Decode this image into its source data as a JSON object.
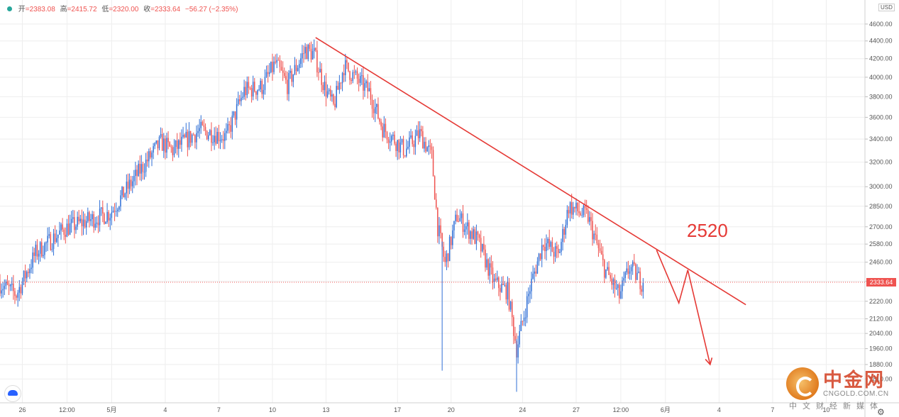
{
  "ohlc_bar": {
    "open_label": "开",
    "open_value": "=2383.08",
    "high_label": "高",
    "high_value": "=2415.72",
    "low_label": "低",
    "low_value": "=2320.00",
    "close_label": "收",
    "close_value": "=2333.64",
    "change": "−56.27 (−2.35%)"
  },
  "last_price_label": "2333.64",
  "currency_label": "USD",
  "annotation_text": "2520",
  "watermark": {
    "title": "中金网",
    "url": "CNGOLD.COM.CN",
    "slogan": "中文财经新媒体"
  },
  "colors": {
    "up": "#2f6fd6",
    "down": "#ef5350",
    "trendline": "#e53935",
    "grid": "#eeeeee"
  },
  "chart_data": {
    "type": "candlestick",
    "title": "",
    "xlabel": "",
    "ylabel": "",
    "y_scale": "log",
    "ylim": [
      1700,
      4900
    ],
    "y_ticks": [
      1810,
      1880,
      1960,
      2040,
      2120,
      2220,
      2340,
      2460,
      2580,
      2700,
      2850,
      3000,
      3200,
      3400,
      3600,
      3800,
      4000,
      4200,
      4400,
      4600
    ],
    "x_ticks": [
      {
        "date": "2021-04-26",
        "label": "26"
      },
      {
        "date": "2021-04-28T12:00",
        "label": "12:00"
      },
      {
        "date": "2021-05-01",
        "label": "5月"
      },
      {
        "date": "2021-05-04",
        "label": "4"
      },
      {
        "date": "2021-05-07",
        "label": "7"
      },
      {
        "date": "2021-05-10",
        "label": "10"
      },
      {
        "date": "2021-05-13",
        "label": "13"
      },
      {
        "date": "2021-05-17",
        "label": "17"
      },
      {
        "date": "2021-05-20",
        "label": "20"
      },
      {
        "date": "2021-05-24",
        "label": "24"
      },
      {
        "date": "2021-05-27",
        "label": "27"
      },
      {
        "date": "2021-05-29T12:00",
        "label": "12:00"
      },
      {
        "date": "2021-06-01",
        "label": "6月"
      },
      {
        "date": "2021-06-04",
        "label": "4"
      },
      {
        "date": "2021-06-07",
        "label": "7"
      },
      {
        "date": "2021-06-10",
        "label": "10"
      }
    ],
    "x_range": [
      "2021-04-24T18:00",
      "2021-06-12T04:00"
    ],
    "grid": true,
    "interval_hours": 2,
    "series_anchors": [
      {
        "t": "2021-04-24T18:00",
        "p": 2330
      },
      {
        "t": "2021-04-25T18:00",
        "p": 2260
      },
      {
        "t": "2021-04-26T20:00",
        "p": 2520
      },
      {
        "t": "2021-04-28T12:00",
        "p": 2690
      },
      {
        "t": "2021-05-01T00:00",
        "p": 2800
      },
      {
        "t": "2021-05-03T00:00",
        "p": 3200
      },
      {
        "t": "2021-05-03T20:00",
        "p": 3370
      },
      {
        "t": "2021-05-04T12:00",
        "p": 3300
      },
      {
        "t": "2021-05-06T00:00",
        "p": 3480
      },
      {
        "t": "2021-05-07T12:00",
        "p": 3420
      },
      {
        "t": "2021-05-08T12:00",
        "p": 3860
      },
      {
        "t": "2021-05-09T12:00",
        "p": 3900
      },
      {
        "t": "2021-05-10T06:00",
        "p": 4150
      },
      {
        "t": "2021-05-10T22:00",
        "p": 3920
      },
      {
        "t": "2021-05-11T22:00",
        "p": 4300
      },
      {
        "t": "2021-05-12T10:00",
        "p": 4250
      },
      {
        "t": "2021-05-13T00:00",
        "p": 3900
      },
      {
        "t": "2021-05-13T12:00",
        "p": 3700
      },
      {
        "t": "2021-05-14T02:00",
        "p": 4120
      },
      {
        "t": "2021-05-15T12:00",
        "p": 3850
      },
      {
        "t": "2021-05-16T06:00",
        "p": 3500
      },
      {
        "t": "2021-05-17T12:00",
        "p": 3300
      },
      {
        "t": "2021-05-18T08:00",
        "p": 3450
      },
      {
        "t": "2021-05-19T00:00",
        "p": 3250
      },
      {
        "t": "2021-05-19T08:00",
        "p": 2700
      },
      {
        "t": "2021-05-19T18:00",
        "p": 2450
      },
      {
        "t": "2021-05-20T10:00",
        "p": 2780
      },
      {
        "t": "2021-05-21T14:00",
        "p": 2600
      },
      {
        "t": "2021-05-22T12:00",
        "p": 2330
      },
      {
        "t": "2021-05-23T06:00",
        "p": 2280
      },
      {
        "t": "2021-05-23T18:00",
        "p": 1960
      },
      {
        "t": "2021-05-24T12:00",
        "p": 2300
      },
      {
        "t": "2021-05-25T06:00",
        "p": 2600
      },
      {
        "t": "2021-05-26T02:00",
        "p": 2500
      },
      {
        "t": "2021-05-26T16:00",
        "p": 2850
      },
      {
        "t": "2021-05-27T18:00",
        "p": 2770
      },
      {
        "t": "2021-05-28T16:00",
        "p": 2420
      },
      {
        "t": "2021-05-29T12:00",
        "p": 2250
      },
      {
        "t": "2021-05-30T02:00",
        "p": 2430
      },
      {
        "t": "2021-05-30T18:00",
        "p": 2334
      }
    ],
    "trendline": {
      "from": {
        "t": "2021-05-12T10:00",
        "p": 4440
      },
      "to": {
        "t": "2021-06-05T12:00",
        "p": 2200
      }
    },
    "projection_path": [
      {
        "t": "2021-05-31T12:00",
        "p": 2540
      },
      {
        "t": "2021-06-01T18:00",
        "p": 2210
      },
      {
        "t": "2021-06-02T06:00",
        "p": 2410
      },
      {
        "t": "2021-06-03T12:00",
        "p": 1880
      }
    ],
    "last_price": 2333.64,
    "annotation": {
      "text": "2520",
      "price": 2520
    }
  }
}
